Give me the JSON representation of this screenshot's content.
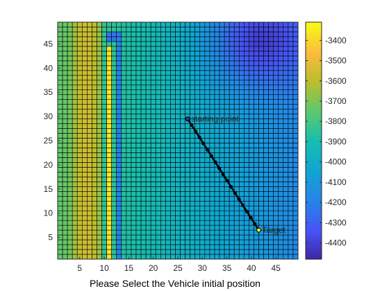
{
  "chart_data": {
    "type": "heatmap",
    "xlabel": "Please Select the Vehicle initial position",
    "ylabel": "",
    "title": "",
    "xlim": [
      0.5,
      49.5
    ],
    "ylim": [
      0.5,
      49.5
    ],
    "x_ticks": [
      5,
      10,
      15,
      20,
      25,
      30,
      35,
      40,
      45
    ],
    "y_ticks": [
      5,
      10,
      15,
      20,
      25,
      30,
      35,
      40,
      45
    ],
    "grid": true,
    "colormap": "parula",
    "colorbar": {
      "clim": [
        -4480,
        -3310
      ],
      "ticks": [
        -3400,
        -3500,
        -3600,
        -3700,
        -3800,
        -3900,
        -4000,
        -4100,
        -4200,
        -4300,
        -4400
      ],
      "placement": "right"
    },
    "field": {
      "description_base": "gradient",
      "base_left": -3760,
      "base_right": -4160,
      "bowl_center": [
        41,
        46
      ],
      "bowl_depth": -300
    },
    "features": [
      {
        "kind": "column",
        "x": [
          3,
          9
        ],
        "y": [
          1,
          49
        ],
        "value": -3560
      },
      {
        "kind": "column",
        "x": [
          11,
          11
        ],
        "y": [
          1,
          44
        ],
        "value": -3360
      },
      {
        "kind": "column",
        "x": [
          13,
          13
        ],
        "y": [
          1,
          46
        ],
        "value": -4200
      },
      {
        "kind": "row",
        "x": [
          11,
          13
        ],
        "y": [
          46,
          47
        ],
        "value": -4230
      }
    ],
    "path": {
      "start": [
        27,
        29.5
      ],
      "end": [
        41.5,
        6.5
      ],
      "points": 19,
      "color": "#000000"
    },
    "annotations": [
      {
        "text": "starting point",
        "x": 27.7,
        "y": 29.5
      },
      {
        "text": "Target",
        "x": 42.2,
        "y": 6.5
      }
    ]
  }
}
